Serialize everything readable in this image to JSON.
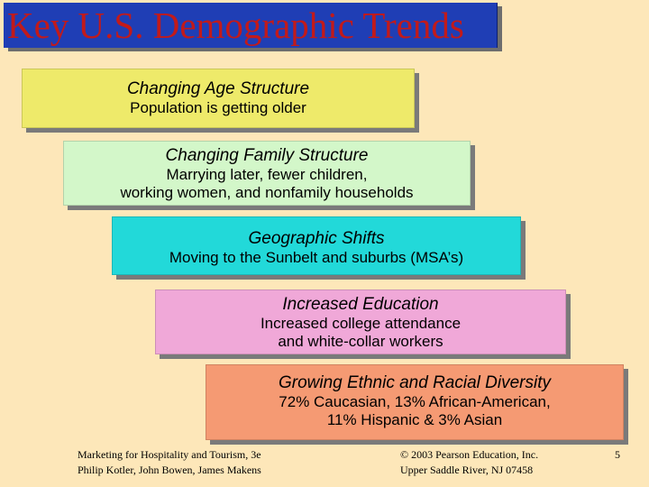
{
  "title": "Key U.S. Demographic Trends",
  "trends": [
    {
      "heading": "Changing Age Structure",
      "lines": [
        "Population is getting older"
      ]
    },
    {
      "heading": "Changing Family Structure",
      "lines": [
        "Marrying later, fewer children,",
        "working women, and nonfamily households"
      ]
    },
    {
      "heading": "Geographic Shifts",
      "lines": [
        "Moving to the Sunbelt and suburbs (MSA’s)"
      ]
    },
    {
      "heading": "Increased Education",
      "lines": [
        "Increased college attendance",
        "and white-collar workers"
      ]
    },
    {
      "heading": "Growing Ethnic and Racial Diversity",
      "lines": [
        "72% Caucasian, 13% African-American,",
        "11% Hispanic & 3% Asian"
      ]
    }
  ],
  "colors": {
    "background": "#fde7b9",
    "title_bg": "#1f3eb5",
    "title_text": "#c21a1a",
    "box1": "#eeea6a",
    "box2": "#d3f7c9",
    "box3": "#22d9d9",
    "box4": "#f0a8d8",
    "box5": "#f59a73"
  },
  "footer": {
    "book": "Marketing for Hospitality and Tourism, 3e",
    "authors": "Philip Kotler, John Bowen, James Makens",
    "copyright": "© 2003 Pearson Education, Inc.",
    "publisher": "Upper Saddle River, NJ 07458",
    "page": "5"
  }
}
